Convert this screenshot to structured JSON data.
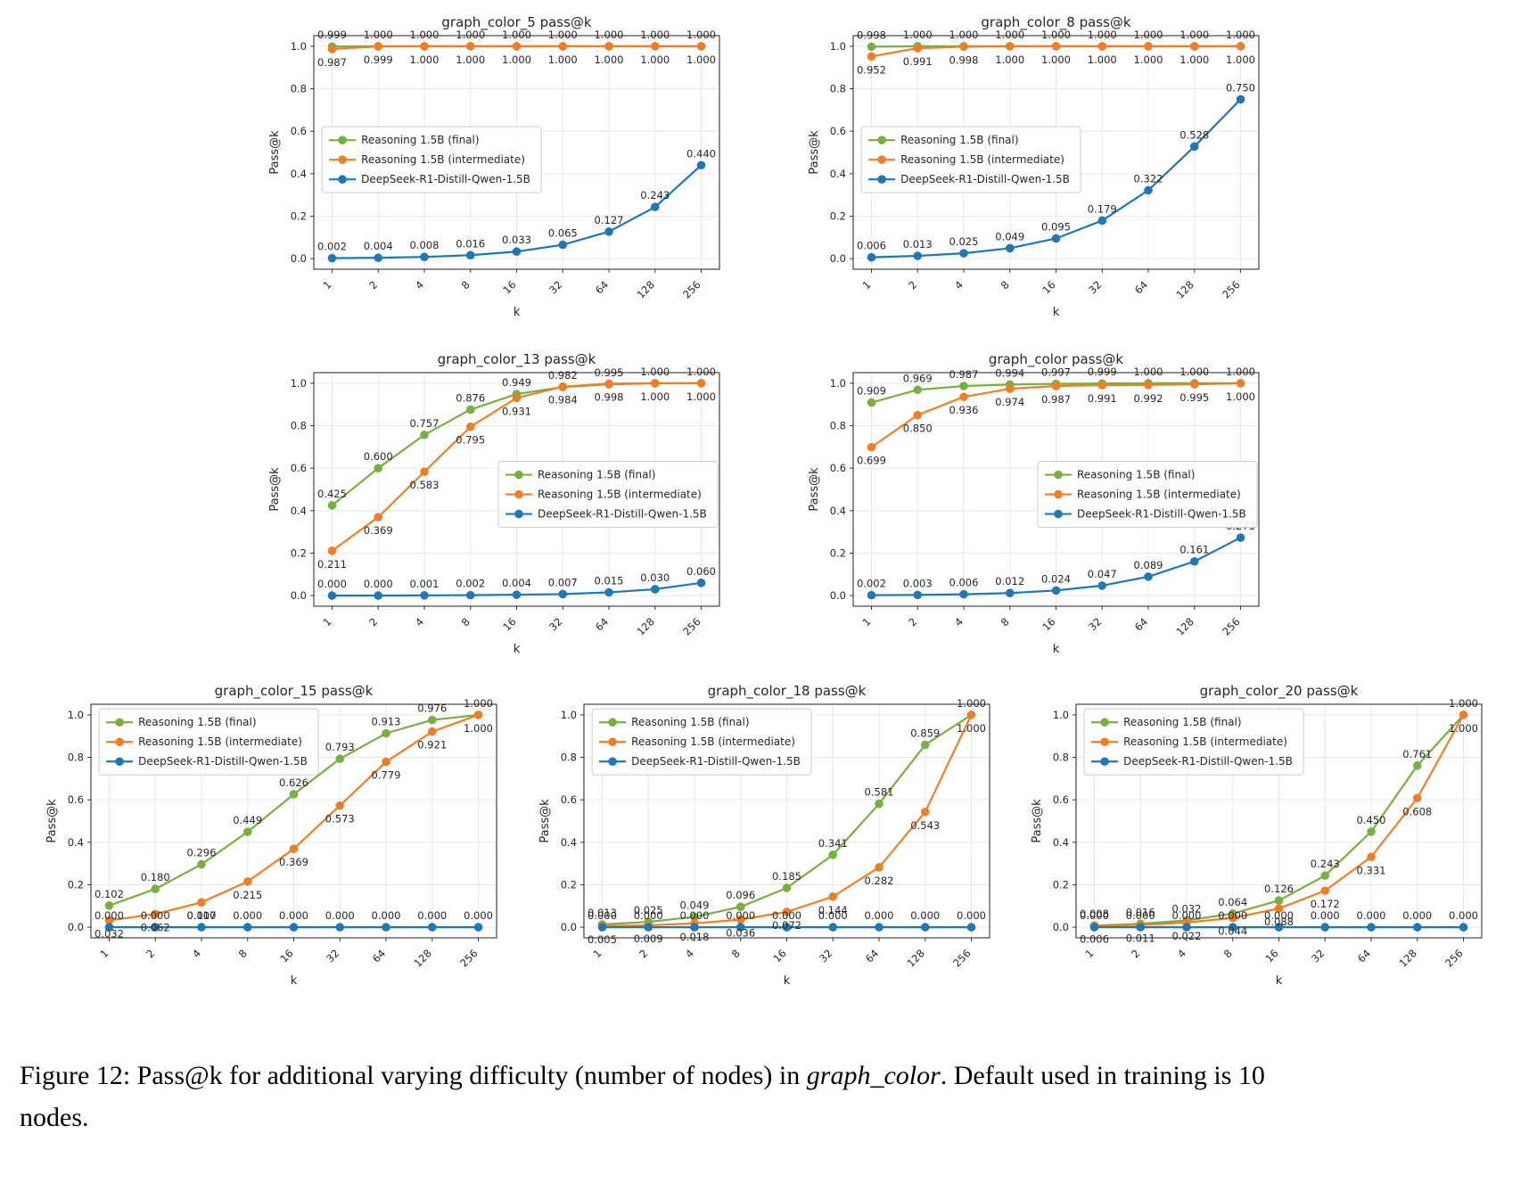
{
  "caption": {
    "part1": "Figure 12: Pass@k for additional varying difficulty (number of nodes) in ",
    "italic": "graph_color",
    "part2": ". Default used in training is 10 nodes."
  },
  "colors": {
    "final": "#77b041",
    "intermediate": "#f07e26",
    "deepseek": "#1f77b4",
    "grid": "#e7e7e7",
    "spine": "#333333",
    "text": "#262626",
    "legend_border": "#cccccc"
  },
  "axes": {
    "xlabel": "k",
    "ylabel": "Pass@k",
    "xticklabels": [
      "1",
      "2",
      "4",
      "8",
      "16",
      "32",
      "64",
      "128",
      "256"
    ],
    "yticks": [
      0.0,
      0.2,
      0.4,
      0.6,
      0.8,
      1.0
    ],
    "ylim": [
      -0.05,
      1.05
    ]
  },
  "legend_labels": [
    "Reasoning 1.5B (final)",
    "Reasoning 1.5B (intermediate)",
    "DeepSeek-R1-Distill-Qwen-1.5B"
  ],
  "chart_data": [
    {
      "type": "line",
      "title": "graph_color_5 pass@k",
      "xlabel": "k",
      "ylabel": "Pass@k",
      "x": [
        1,
        2,
        4,
        8,
        16,
        32,
        64,
        128,
        256
      ],
      "xscale": "log2",
      "ylim": [
        -0.05,
        1.05
      ],
      "grid": true,
      "legend_position": "center-left",
      "series": [
        {
          "name": "Reasoning 1.5B (final)",
          "color": "final",
          "values": [
            0.999,
            1.0,
            1.0,
            1.0,
            1.0,
            1.0,
            1.0,
            1.0,
            1.0
          ]
        },
        {
          "name": "Reasoning 1.5B (intermediate)",
          "color": "intermediate",
          "values": [
            0.987,
            0.999,
            1.0,
            1.0,
            1.0,
            1.0,
            1.0,
            1.0,
            1.0
          ]
        },
        {
          "name": "DeepSeek-R1-Distill-Qwen-1.5B",
          "color": "deepseek",
          "values": [
            0.002,
            0.004,
            0.008,
            0.016,
            0.033,
            0.065,
            0.127,
            0.243,
            0.44
          ]
        }
      ]
    },
    {
      "type": "line",
      "title": "graph_color_8 pass@k",
      "xlabel": "k",
      "ylabel": "Pass@k",
      "x": [
        1,
        2,
        4,
        8,
        16,
        32,
        64,
        128,
        256
      ],
      "xscale": "log2",
      "ylim": [
        -0.05,
        1.05
      ],
      "grid": true,
      "legend_position": "center-left",
      "series": [
        {
          "name": "Reasoning 1.5B (final)",
          "color": "final",
          "values": [
            0.998,
            1.0,
            1.0,
            1.0,
            1.0,
            1.0,
            1.0,
            1.0,
            1.0
          ]
        },
        {
          "name": "Reasoning 1.5B (intermediate)",
          "color": "intermediate",
          "values": [
            0.952,
            0.991,
            0.998,
            1.0,
            1.0,
            1.0,
            1.0,
            1.0,
            1.0
          ]
        },
        {
          "name": "DeepSeek-R1-Distill-Qwen-1.5B",
          "color": "deepseek",
          "values": [
            0.006,
            0.013,
            0.025,
            0.049,
            0.095,
            0.179,
            0.322,
            0.528,
            0.75
          ]
        }
      ]
    },
    {
      "type": "line",
      "title": "graph_color_13 pass@k",
      "xlabel": "k",
      "ylabel": "Pass@k",
      "x": [
        1,
        2,
        4,
        8,
        16,
        32,
        64,
        128,
        256
      ],
      "xscale": "log2",
      "ylim": [
        -0.05,
        1.05
      ],
      "grid": true,
      "legend_position": "center-right",
      "series": [
        {
          "name": "Reasoning 1.5B (final)",
          "color": "final",
          "values": [
            0.425,
            0.6,
            0.757,
            0.876,
            0.949,
            0.982,
            0.995,
            1.0,
            1.0
          ]
        },
        {
          "name": "Reasoning 1.5B (intermediate)",
          "color": "intermediate",
          "values": [
            0.211,
            0.369,
            0.583,
            0.795,
            0.931,
            0.984,
            0.998,
            1.0,
            1.0
          ]
        },
        {
          "name": "DeepSeek-R1-Distill-Qwen-1.5B",
          "color": "deepseek",
          "values": [
            0.0,
            0.0,
            0.001,
            0.002,
            0.004,
            0.007,
            0.015,
            0.03,
            0.06
          ]
        }
      ]
    },
    {
      "type": "line",
      "title": "graph_color pass@k",
      "xlabel": "k",
      "ylabel": "Pass@k",
      "x": [
        1,
        2,
        4,
        8,
        16,
        32,
        64,
        128,
        256
      ],
      "xscale": "log2",
      "ylim": [
        -0.05,
        1.05
      ],
      "grid": true,
      "legend_position": "center-right",
      "series": [
        {
          "name": "Reasoning 1.5B (final)",
          "color": "final",
          "values": [
            0.909,
            0.969,
            0.987,
            0.994,
            0.997,
            0.999,
            1.0,
            1.0,
            1.0
          ]
        },
        {
          "name": "Reasoning 1.5B (intermediate)",
          "color": "intermediate",
          "values": [
            0.699,
            0.85,
            0.936,
            0.974,
            0.987,
            0.991,
            0.992,
            0.995,
            1.0
          ]
        },
        {
          "name": "DeepSeek-R1-Distill-Qwen-1.5B",
          "color": "deepseek",
          "values": [
            0.002,
            0.003,
            0.006,
            0.012,
            0.024,
            0.047,
            0.089,
            0.161,
            0.273
          ]
        }
      ]
    },
    {
      "type": "line",
      "title": "graph_color_15 pass@k",
      "xlabel": "k",
      "ylabel": "Pass@k",
      "x": [
        1,
        2,
        4,
        8,
        16,
        32,
        64,
        128,
        256
      ],
      "xscale": "log2",
      "ylim": [
        -0.05,
        1.05
      ],
      "grid": true,
      "legend_position": "upper-left",
      "series": [
        {
          "name": "Reasoning 1.5B (final)",
          "color": "final",
          "values": [
            0.102,
            0.18,
            0.296,
            0.449,
            0.626,
            0.793,
            0.913,
            0.976,
            1.0
          ]
        },
        {
          "name": "Reasoning 1.5B (intermediate)",
          "color": "intermediate",
          "values": [
            0.032,
            0.062,
            0.117,
            0.215,
            0.369,
            0.573,
            0.779,
            0.921,
            1.0
          ]
        },
        {
          "name": "DeepSeek-R1-Distill-Qwen-1.5B",
          "color": "deepseek",
          "values": [
            0.0,
            0.0,
            0.0,
            0.0,
            0.0,
            0.0,
            0.0,
            0.0,
            0.0
          ]
        }
      ]
    },
    {
      "type": "line",
      "title": "graph_color_18 pass@k",
      "xlabel": "k",
      "ylabel": "Pass@k",
      "x": [
        1,
        2,
        4,
        8,
        16,
        32,
        64,
        128,
        256
      ],
      "xscale": "log2",
      "ylim": [
        -0.05,
        1.05
      ],
      "grid": true,
      "legend_position": "upper-left",
      "series": [
        {
          "name": "Reasoning 1.5B (final)",
          "color": "final",
          "values": [
            0.013,
            0.025,
            0.049,
            0.096,
            0.185,
            0.341,
            0.581,
            0.859,
            1.0
          ]
        },
        {
          "name": "Reasoning 1.5B (intermediate)",
          "color": "intermediate",
          "values": [
            0.005,
            0.009,
            0.018,
            0.036,
            0.072,
            0.144,
            0.282,
            0.543,
            1.0
          ]
        },
        {
          "name": "DeepSeek-R1-Distill-Qwen-1.5B",
          "color": "deepseek",
          "values": [
            0.0,
            0.0,
            0.0,
            0.0,
            0.0,
            0.0,
            0.0,
            0.0,
            0.0
          ]
        }
      ]
    },
    {
      "type": "line",
      "title": "graph_color_20 pass@k",
      "xlabel": "k",
      "ylabel": "Pass@k",
      "x": [
        1,
        2,
        4,
        8,
        16,
        32,
        64,
        128,
        256
      ],
      "xscale": "log2",
      "ylim": [
        -0.05,
        1.05
      ],
      "grid": true,
      "legend_position": "upper-left",
      "series": [
        {
          "name": "Reasoning 1.5B (final)",
          "color": "final",
          "values": [
            0.008,
            0.016,
            0.032,
            0.064,
            0.126,
            0.243,
            0.45,
            0.761,
            1.0
          ]
        },
        {
          "name": "Reasoning 1.5B (intermediate)",
          "color": "intermediate",
          "values": [
            0.006,
            0.011,
            0.022,
            0.044,
            0.088,
            0.172,
            0.331,
            0.608,
            1.0
          ]
        },
        {
          "name": "DeepSeek-R1-Distill-Qwen-1.5B",
          "color": "deepseek",
          "values": [
            0.0,
            0.0,
            0.0,
            0.0,
            0.0,
            0.0,
            0.0,
            0.0,
            0.0
          ]
        }
      ]
    }
  ]
}
